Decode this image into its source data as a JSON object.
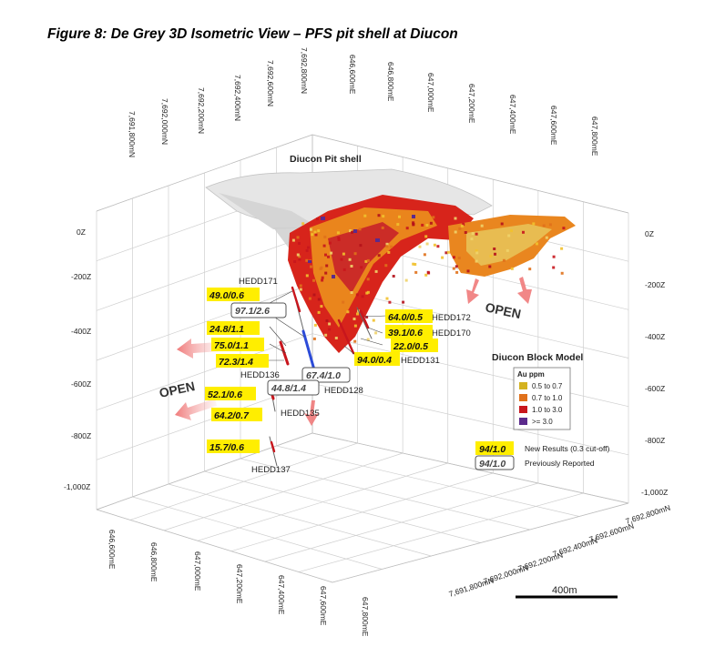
{
  "figure": {
    "title": "Figure 8: De Grey 3D Isometric View – PFS pit shell at Diucon",
    "pit_label": "Diucon Pit shell",
    "open_labels": [
      "OPEN",
      "OPEN"
    ],
    "scale_label": "400m"
  },
  "axes": {
    "top_northing": [
      "7,691,800mN",
      "7,692,000mN",
      "7,692,200mN",
      "7,692,400mN",
      "7,692,600mN",
      "7,692,800mN"
    ],
    "top_easting": [
      "646,600mE",
      "646,800mE",
      "647,000mE",
      "647,200mE",
      "647,400mE",
      "647,600mE",
      "647,800mE"
    ],
    "left_z": [
      "0Z",
      "-200Z",
      "-400Z",
      "-600Z",
      "-800Z",
      "-1,000Z"
    ],
    "right_z": [
      "0Z",
      "-200Z",
      "-400Z",
      "-600Z",
      "-800Z",
      "-1,000Z"
    ],
    "bottom_easting": [
      "646,600mE",
      "646,800mE",
      "647,000mE",
      "647,200mE",
      "647,400mE",
      "647,600mE",
      "647,800mE"
    ],
    "bottom_northing": [
      "7,692,800mN",
      "7,692,600mN",
      "7,692,400mN",
      "7,692,200mN",
      "7,692,000mN",
      "7,691,800mN"
    ]
  },
  "holes": [
    "HEDD171",
    "HEDD172",
    "HEDD170",
    "HEDD131",
    "HEDD136",
    "HEDD128",
    "HEDD135",
    "HEDD137"
  ],
  "results": {
    "new": [
      "49.0/0.6",
      "24.8/1.1",
      "75.0/1.1",
      "72.3/1.4",
      "64.0/0.5",
      "39.1/0.6",
      "22.0/0.5",
      "94.0/0.4",
      "52.1/0.6",
      "64.2/0.7",
      "15.7/0.6"
    ],
    "previous": [
      "97.1/2.6",
      "67.4/1.0",
      "44.8/1.4"
    ]
  },
  "block_model": {
    "title": "Diucon Block Model",
    "unit": "Au ppm",
    "classes": [
      {
        "label": "0.5 to 0.7",
        "color": "#d4b21f"
      },
      {
        "label": "0.7 to 1.0",
        "color": "#e0711b"
      },
      {
        "label": "1.0 to 3.0",
        "color": "#c8161d"
      },
      {
        "label": ">= 3.0",
        "color": "#5b2a8c"
      }
    ]
  },
  "key": {
    "new_sample": "94/1.0",
    "new_text": "New Results (0.3 cut-off)",
    "prev_sample": "94/1.0",
    "prev_text": "Previously Reported"
  }
}
